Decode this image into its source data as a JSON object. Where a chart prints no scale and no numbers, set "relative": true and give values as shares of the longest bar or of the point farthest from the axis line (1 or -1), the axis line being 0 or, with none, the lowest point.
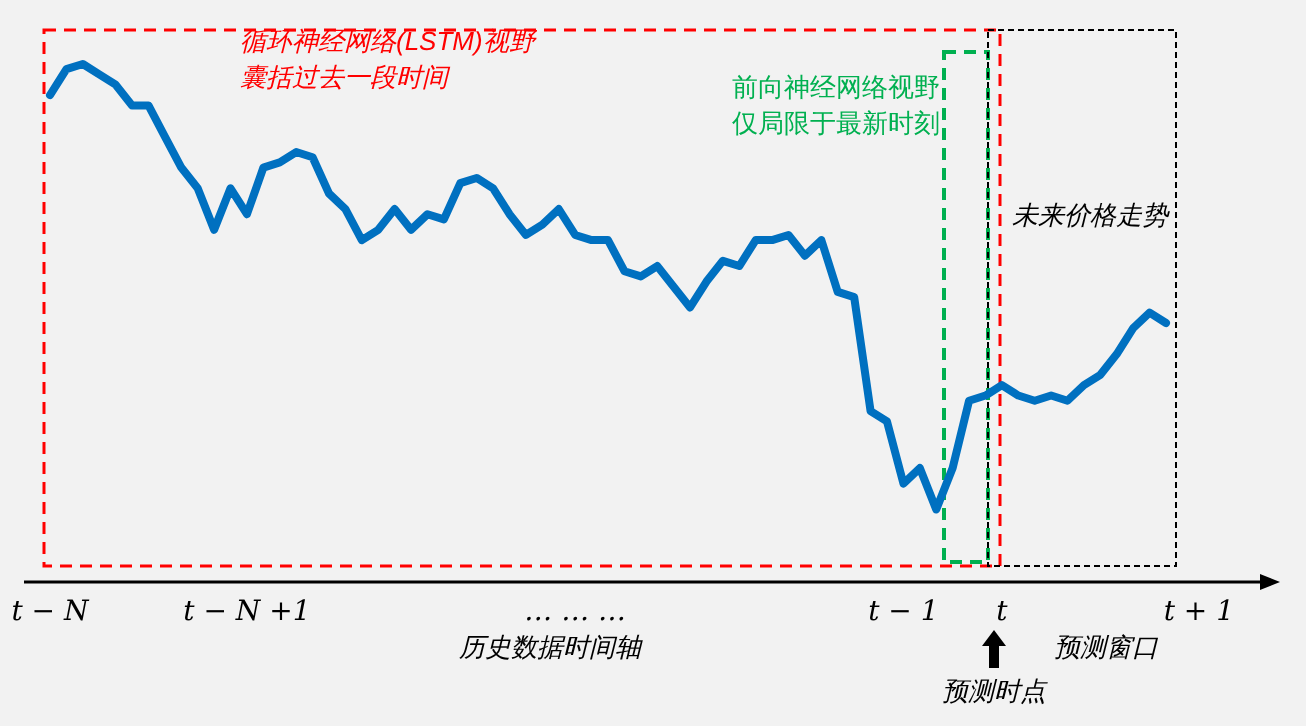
{
  "chart_data": {
    "type": "line",
    "relative": true,
    "categories": [
      "t − N",
      null,
      null,
      null,
      null,
      null,
      null,
      null,
      null,
      null,
      null,
      null,
      "t − N +1",
      null,
      null,
      null,
      null,
      null,
      null,
      null,
      null,
      null,
      null,
      null,
      null,
      null,
      null,
      null,
      null,
      null,
      null,
      null,
      "… … …",
      null,
      null,
      null,
      null,
      null,
      null,
      null,
      null,
      null,
      null,
      null,
      null,
      null,
      null,
      null,
      null,
      null,
      null,
      null,
      "t − 1",
      null,
      null,
      null,
      null,
      null,
      "t",
      null,
      null,
      null,
      null,
      null,
      null,
      null,
      null,
      null,
      null,
      null,
      "t + 1"
    ],
    "series": [
      {
        "color": "#0070c0",
        "values": [
          0.94,
          0.99,
          1,
          0.98,
          0.96,
          0.92,
          0.92,
          0.86,
          0.8,
          0.76,
          0.68,
          0.76,
          0.71,
          0.8,
          0.81,
          0.83,
          0.82,
          0.75,
          0.72,
          0.66,
          0.68,
          0.72,
          0.68,
          0.71,
          0.7,
          0.77,
          0.78,
          0.76,
          0.71,
          0.67,
          0.69,
          0.72,
          0.67,
          0.66,
          0.66,
          0.6,
          0.59,
          0.61,
          0.57,
          0.53,
          0.58,
          0.62,
          0.61,
          0.66,
          0.66,
          0.67,
          0.63,
          0.66,
          0.56,
          0.55,
          0.33,
          0.31,
          0.19,
          0.22,
          0.14,
          0.22,
          0.35,
          0.36,
          0.38,
          0.36,
          0.35,
          0.36,
          0.35,
          0.38,
          0.4,
          0.44,
          0.49,
          0.52,
          0.5,
          null,
          null
        ]
      }
    ],
    "annotations": [
      "循环神经网络(LSTM)视野",
      "囊括过去一段时间",
      "前向神经网络视野",
      "仅局限于最新时刻",
      "未来价格走势",
      "历史数据时间轴",
      "预测窗口",
      "预测时点"
    ]
  }
}
